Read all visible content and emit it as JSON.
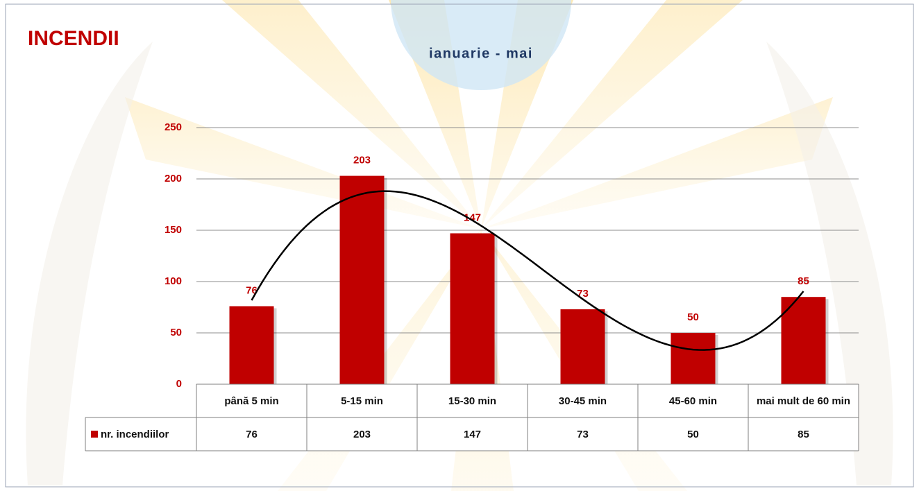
{
  "chart_data": {
    "type": "bar",
    "title": "INCENDII",
    "subtitle": "ianuarie - mai",
    "categories": [
      "până 5 min",
      "5-15 min",
      "15-30 min",
      "30-45 min",
      "45-60 min",
      "mai mult de 60 min"
    ],
    "series": [
      {
        "name": "nr. incendiilor",
        "color": "#c00000",
        "values": [
          76,
          203,
          147,
          73,
          50,
          85
        ]
      }
    ],
    "ylim": [
      0,
      250
    ],
    "yticks": [
      0,
      50,
      100,
      150,
      200,
      250
    ],
    "grid": true,
    "trendline": "polynomial",
    "data_table": true
  }
}
